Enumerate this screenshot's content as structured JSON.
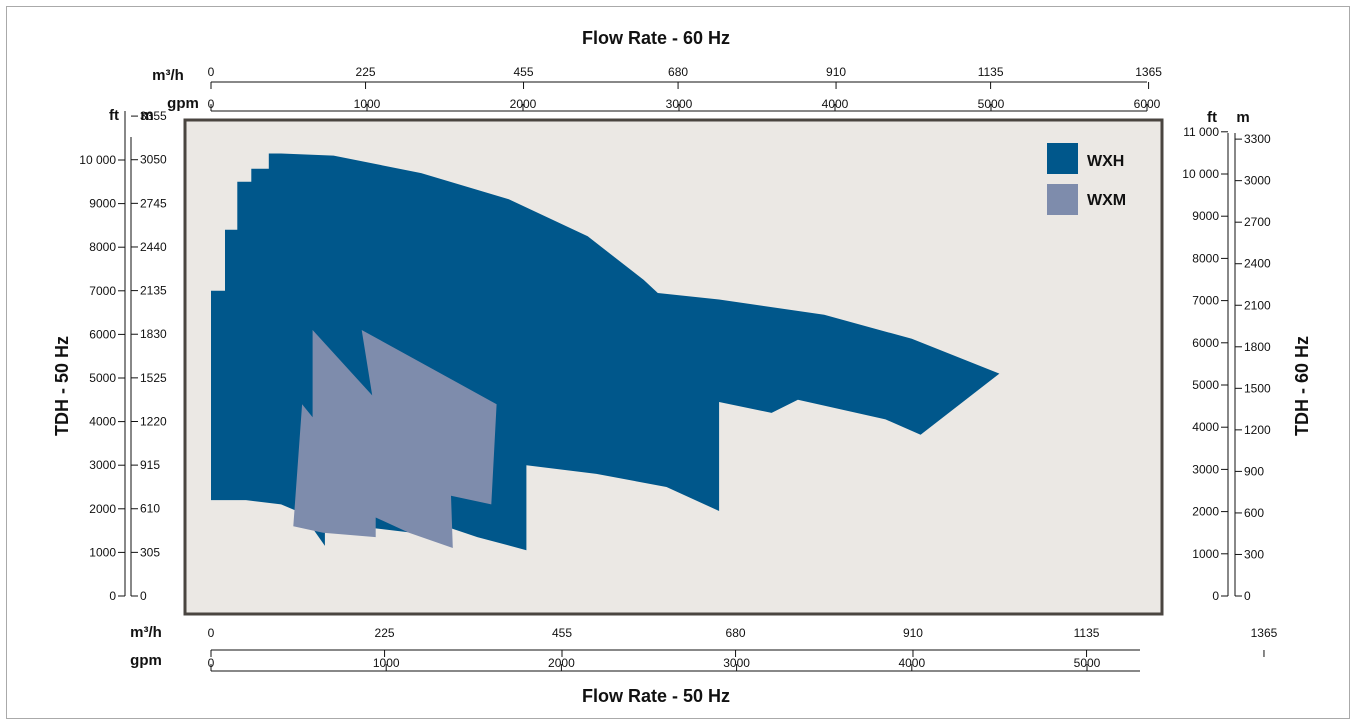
{
  "chart_data": {
    "type": "area",
    "title_top": "Flow Rate - 60 Hz",
    "title_bottom": "Flow Rate - 50 Hz",
    "ylabel_left": "TDH - 50 Hz",
    "ylabel_right": "TDH - 60 Hz",
    "units": {
      "ft": "ft",
      "m": "m",
      "m3h": "m³/h",
      "gpm": "gpm"
    },
    "x_gpm_50": {
      "range": [
        0,
        5300
      ],
      "ticks": [
        "0",
        "1000",
        "2000",
        "3000",
        "4000",
        "5000"
      ]
    },
    "x_m3h_50": {
      "ticks": [
        "0",
        "225",
        "455",
        "680",
        "910",
        "1135",
        "1365"
      ]
    },
    "x_gpm_60": {
      "range": [
        0,
        6000
      ],
      "ticks": [
        "0",
        "1000",
        "2000",
        "3000",
        "4000",
        "5000",
        "6000"
      ]
    },
    "x_m3h_60": {
      "ticks": [
        "0",
        "225",
        "455",
        "680",
        "910",
        "1135",
        "1365"
      ]
    },
    "y_ft_50": {
      "range": [
        0,
        11000
      ],
      "ticks": [
        "0",
        "1000",
        "2000",
        "3000",
        "4000",
        "5000",
        "6000",
        "7000",
        "8000",
        "9000",
        "10 000"
      ]
    },
    "y_m_50": {
      "ticks": [
        "0",
        "305",
        "610",
        "915",
        "1220",
        "1525",
        "1830",
        "2135",
        "2440",
        "2745",
        "3050",
        "3355"
      ]
    },
    "y_ft_60": {
      "range": [
        0,
        11000
      ],
      "ticks": [
        "0",
        "1000",
        "2000",
        "3000",
        "4000",
        "5000",
        "6000",
        "7000",
        "8000",
        "9000",
        "10 000",
        "11 000"
      ]
    },
    "y_m_60": {
      "ticks": [
        "0",
        "300",
        "600",
        "900",
        "1200",
        "1500",
        "1800",
        "2100",
        "2400",
        "2700",
        "3000",
        "3300"
      ]
    },
    "series": [
      {
        "name": "WXH",
        "color": "#00578b",
        "points": [
          [
            0,
            2200
          ],
          [
            200,
            2200
          ],
          [
            400,
            2100
          ],
          [
            520,
            1900
          ],
          [
            650,
            1150
          ],
          [
            650,
            1550
          ],
          [
            940,
            1550
          ],
          [
            1150,
            1450
          ],
          [
            1300,
            1650
          ],
          [
            1520,
            1350
          ],
          [
            1800,
            1050
          ],
          [
            1800,
            3000
          ],
          [
            2200,
            2800
          ],
          [
            2600,
            2500
          ],
          [
            2900,
            1950
          ],
          [
            2900,
            4450
          ],
          [
            3200,
            4200
          ],
          [
            3350,
            4500
          ],
          [
            3850,
            4050
          ],
          [
            4050,
            3700
          ],
          [
            4500,
            5100
          ],
          [
            4000,
            5900
          ],
          [
            3500,
            6450
          ],
          [
            2900,
            6800
          ],
          [
            2550,
            6950
          ],
          [
            2470,
            7250
          ],
          [
            2150,
            8250
          ],
          [
            1700,
            9100
          ],
          [
            1200,
            9700
          ],
          [
            700,
            10100
          ],
          [
            400,
            10150
          ],
          [
            330,
            10150
          ],
          [
            330,
            10150
          ],
          [
            330,
            9800
          ],
          [
            230,
            9800
          ],
          [
            230,
            9500
          ],
          [
            150,
            9500
          ],
          [
            150,
            8400
          ],
          [
            80,
            8400
          ],
          [
            80,
            7000
          ],
          [
            0,
            7000
          ]
        ]
      },
      {
        "name": "WXM",
        "color": "#7e8cac",
        "points": [
          [
            470,
            1600
          ],
          [
            520,
            4400
          ],
          [
            580,
            4100
          ],
          [
            580,
            6100
          ],
          [
            920,
            4600
          ],
          [
            860,
            6100
          ],
          [
            1630,
            4400
          ],
          [
            1600,
            2100
          ],
          [
            1370,
            2300
          ],
          [
            1380,
            1100
          ],
          [
            1130,
            1450
          ],
          [
            940,
            1800
          ],
          [
            940,
            1350
          ],
          [
            640,
            1450
          ],
          [
            470,
            1600
          ]
        ]
      }
    ],
    "legend_placement": "top-right",
    "colors": {
      "plot_bg": "#ebe8e4",
      "frame": "#4a4540",
      "border": "#aaaaaa"
    }
  }
}
